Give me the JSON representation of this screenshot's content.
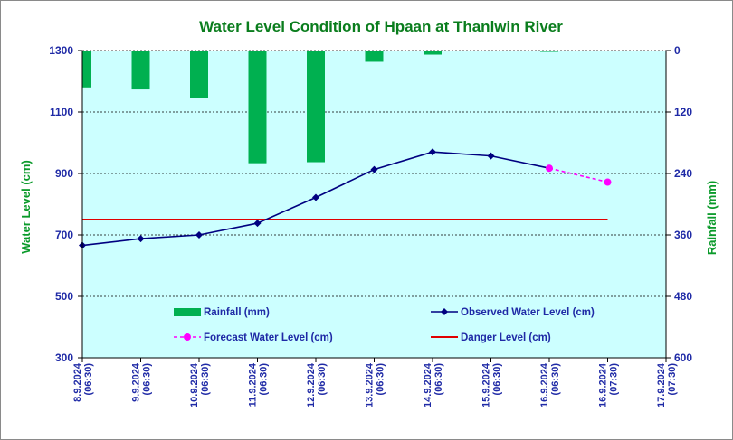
{
  "chart_data": {
    "type": "bar+line",
    "title": "Water Level Condition of Hpaan at Thanlwin River",
    "ylabel_left": "Water Level (cm)",
    "ylabel_right": "Rainfall (mm)",
    "y_left_range": [
      300,
      1300
    ],
    "y_left_ticks": [
      "300",
      "500",
      "700",
      "900",
      "1100",
      "1300"
    ],
    "y_right_range": [
      0,
      600
    ],
    "y_right_inverted": true,
    "y_right_ticks": [
      "600",
      "480",
      "360",
      "240",
      "120",
      "0"
    ],
    "categories": [
      [
        "8.9.2024",
        "(06:30)"
      ],
      [
        "9.9.2024",
        "(06:30)"
      ],
      [
        "10.9.2024",
        "(06:30)"
      ],
      [
        "11.9.2024",
        "(06:30)"
      ],
      [
        "12.9.2024",
        "(06:30)"
      ],
      [
        "13.9.2024",
        "(06:30)"
      ],
      [
        "14.9.2024",
        "(06:30)"
      ],
      [
        "15.9.2024",
        "(06:30)"
      ],
      [
        "16.9.2024",
        "(06:30)"
      ],
      [
        "16.9.2024",
        "(07:30)"
      ],
      [
        "17.9.2024",
        "(07:30)"
      ]
    ],
    "series": [
      {
        "name": "Rainfall (mm)",
        "kind": "bar",
        "axis": "right",
        "color": "#00b050",
        "values": [
          72,
          76,
          92,
          220,
          218,
          22,
          8,
          null,
          2,
          null,
          null
        ]
      },
      {
        "name": "Observed Water Level (cm)",
        "kind": "line",
        "axis": "left",
        "color": "#000080",
        "values": [
          666,
          688,
          700,
          738,
          822,
          913,
          970,
          957,
          917,
          null,
          null
        ]
      },
      {
        "name": "Forecast Water Level (cm)",
        "kind": "line-dashed",
        "axis": "left",
        "color": "#ff00ff",
        "values": [
          null,
          null,
          null,
          null,
          null,
          null,
          null,
          null,
          917,
          872,
          null
        ]
      },
      {
        "name": "Danger Level (cm)",
        "kind": "line",
        "axis": "left",
        "color": "#e00000",
        "values": [
          750,
          750,
          750,
          750,
          750,
          750,
          750,
          750,
          750,
          750,
          null
        ]
      }
    ],
    "legend": "inside-bottom",
    "grid": "horizontal-dotted",
    "background_color": "#ccffff"
  }
}
